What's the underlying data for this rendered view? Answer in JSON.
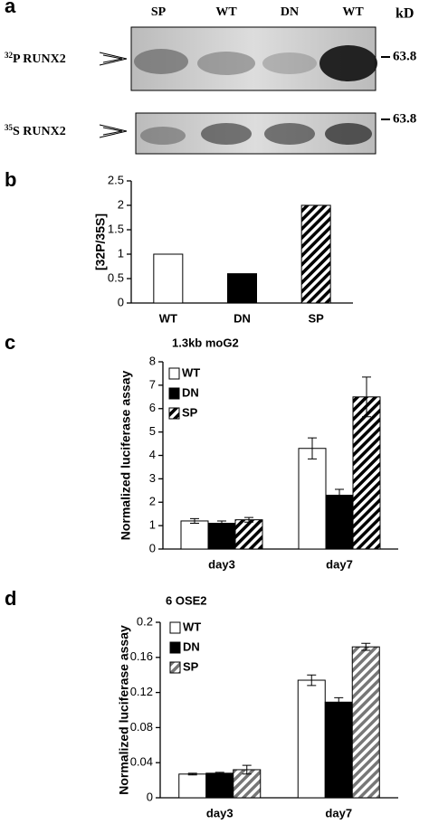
{
  "panels": [
    "a",
    "b",
    "c",
    "d"
  ],
  "blot": {
    "lanes": [
      "SP",
      "WT",
      "DN",
      "WT"
    ],
    "unit": "kD",
    "rows": [
      {
        "isotope": "32",
        "label": "P RUNX2",
        "marker": "63.8"
      },
      {
        "isotope": "35",
        "label": "S RUNX2",
        "marker": "63.8"
      }
    ]
  },
  "chart_data": [
    {
      "type": "bar",
      "ylabel": "[32P/35S]",
      "categories": [
        "WT",
        "DN",
        "SP"
      ],
      "values": [
        1,
        0.6,
        2
      ],
      "styles": [
        "open",
        "solid",
        "hatched"
      ],
      "ylim": [
        0,
        2.5
      ],
      "yticks": [
        0,
        0.5,
        1,
        1.5,
        2,
        2.5
      ]
    },
    {
      "type": "grouped-bar",
      "title": "1.3kb moG2",
      "ylabel": "Normalized luciferase assay",
      "categories": [
        "day3",
        "day7"
      ],
      "series": [
        {
          "name": "WT",
          "style": "open",
          "values": [
            1.2,
            4.3
          ],
          "errors": [
            0.1,
            0.45
          ]
        },
        {
          "name": "DN",
          "style": "solid",
          "values": [
            1.1,
            2.3
          ],
          "errors": [
            0.1,
            0.25
          ]
        },
        {
          "name": "SP",
          "style": "hatched",
          "values": [
            1.25,
            6.5
          ],
          "errors": [
            0.1,
            0.85
          ]
        }
      ],
      "ylim": [
        0,
        8
      ],
      "yticks": [
        0,
        1,
        2,
        3,
        4,
        5,
        6,
        7,
        8
      ],
      "legend": "top-left"
    },
    {
      "type": "grouped-bar",
      "title": "6 OSE2",
      "ylabel": "Normalized luciferase assay",
      "categories": [
        "day3",
        "day7"
      ],
      "series": [
        {
          "name": "WT",
          "style": "open",
          "values": [
            0.027,
            0.134
          ],
          "errors": [
            0.001,
            0.006
          ]
        },
        {
          "name": "DN",
          "style": "solid",
          "values": [
            0.028,
            0.109
          ],
          "errors": [
            0.001,
            0.005
          ]
        },
        {
          "name": "SP",
          "style": "hatched-gray",
          "values": [
            0.032,
            0.172
          ],
          "errors": [
            0.005,
            0.004
          ]
        }
      ],
      "ylim": [
        0,
        0.2
      ],
      "yticks": [
        0,
        0.04,
        0.08,
        0.12,
        0.16,
        0.2
      ],
      "legend": "top-left"
    }
  ]
}
